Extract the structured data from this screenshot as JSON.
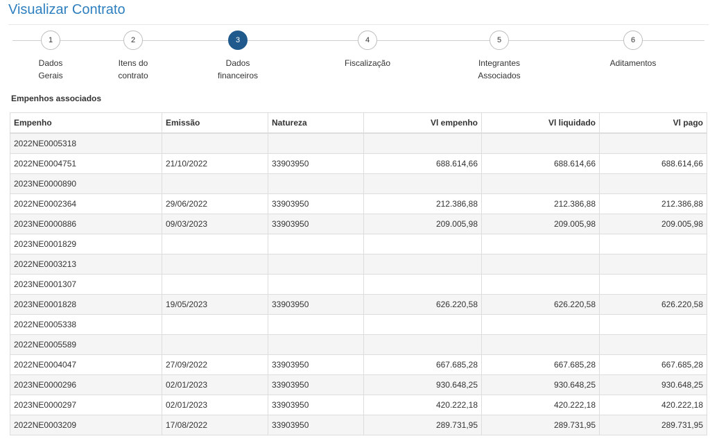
{
  "page": {
    "title": "Visualizar Contrato"
  },
  "stepper": {
    "steps": [
      {
        "number": "1",
        "label_line1": "Dados",
        "label_line2": "Gerais",
        "active": false
      },
      {
        "number": "2",
        "label_line1": "Itens do",
        "label_line2": "contrato",
        "active": false
      },
      {
        "number": "3",
        "label_line1": "Dados",
        "label_line2": "financeiros",
        "active": true
      },
      {
        "number": "4",
        "label_line1": "Fiscalização",
        "label_line2": "",
        "active": false
      },
      {
        "number": "5",
        "label_line1": "Integrantes",
        "label_line2": "Associados",
        "active": false
      },
      {
        "number": "6",
        "label_line1": "Aditamentos",
        "label_line2": "",
        "active": false
      }
    ],
    "active_color": "#205a8c"
  },
  "section": {
    "title": "Empenhos associados"
  },
  "table": {
    "headers": [
      "Empenho",
      "Emissão",
      "Natureza",
      "Vl empenho",
      "Vl liquidado",
      "Vl pago"
    ],
    "rows": [
      [
        "2022NE0005318",
        "",
        "",
        "",
        "",
        ""
      ],
      [
        "2022NE0004751",
        "21/10/2022",
        "33903950",
        "688.614,66",
        "688.614,66",
        "688.614,66"
      ],
      [
        "2023NE0000890",
        "",
        "",
        "",
        "",
        ""
      ],
      [
        "2022NE0002364",
        "29/06/2022",
        "33903950",
        "212.386,88",
        "212.386,88",
        "212.386,88"
      ],
      [
        "2023NE0000886",
        "09/03/2023",
        "33903950",
        "209.005,98",
        "209.005,98",
        "209.005,98"
      ],
      [
        "2023NE0001829",
        "",
        "",
        "",
        "",
        ""
      ],
      [
        "2022NE0003213",
        "",
        "",
        "",
        "",
        ""
      ],
      [
        "2023NE0001307",
        "",
        "",
        "",
        "",
        ""
      ],
      [
        "2023NE0001828",
        "19/05/2023",
        "33903950",
        "626.220,58",
        "626.220,58",
        "626.220,58"
      ],
      [
        "2022NE0005338",
        "",
        "",
        "",
        "",
        ""
      ],
      [
        "2022NE0005589",
        "",
        "",
        "",
        "",
        ""
      ],
      [
        "2022NE0004047",
        "27/09/2022",
        "33903950",
        "667.685,28",
        "667.685,28",
        "667.685,28"
      ],
      [
        "2023NE0000296",
        "02/01/2023",
        "33903950",
        "930.648,25",
        "930.648,25",
        "930.648,25"
      ],
      [
        "2023NE0000297",
        "02/01/2023",
        "33903950",
        "420.222,18",
        "420.222,18",
        "420.222,18"
      ],
      [
        "2022NE0003209",
        "17/08/2022",
        "33903950",
        "289.731,95",
        "289.731,95",
        "289.731,95"
      ]
    ]
  }
}
